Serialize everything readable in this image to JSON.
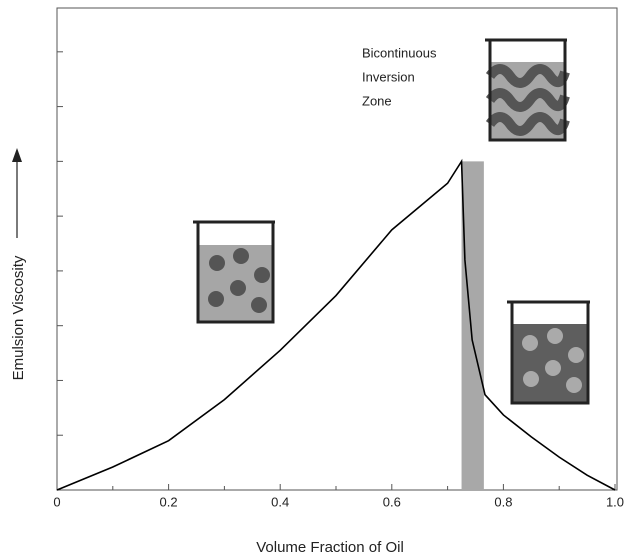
{
  "chart_data": {
    "type": "line",
    "xlabel": "Volume Fraction of Oil",
    "ylabel": "Emulsion Viscosity",
    "annotation": [
      "Bicontinuous",
      "Inversion",
      "Zone"
    ],
    "series": [
      {
        "color": "#000000",
        "x": [
          0,
          0.1,
          0.2,
          0.3,
          0.4,
          0.5,
          0.6,
          0.7,
          0.725,
          0.731,
          0.744,
          0.767,
          0.8,
          0.85,
          0.9,
          0.95,
          1.0
        ],
        "values": [
          0,
          0.42,
          0.9,
          1.65,
          2.55,
          3.55,
          4.75,
          5.6,
          6.0,
          4.2,
          2.74,
          1.74,
          1.37,
          0.97,
          0.6,
          0.27,
          0
        ]
      }
    ],
    "band": {
      "x": [
        0.725,
        0.765
      ],
      "top": 6,
      "color": "#a8a8a8"
    },
    "xlim": [
      0,
      1
    ],
    "xticks": [
      0,
      0.2,
      0.4,
      0.6,
      0.8,
      {
        "value": 1,
        "label": "1.0"
      }
    ],
    "xminorticks": [
      0.1,
      0.3,
      0.5,
      0.7,
      0.9
    ],
    "ylim": [
      0,
      8.8
    ],
    "yticks": [
      1,
      2,
      3,
      4,
      5,
      6,
      7,
      8
    ]
  }
}
